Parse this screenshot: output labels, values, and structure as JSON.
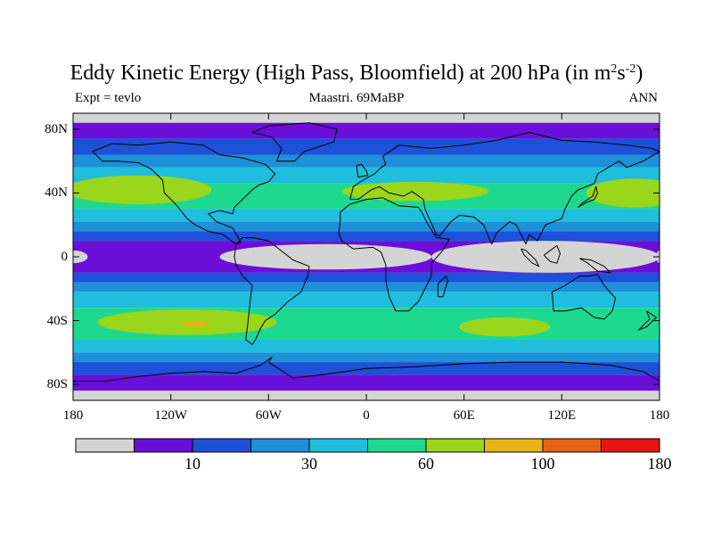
{
  "title": {
    "main": "Eddy Kinetic Energy (High Pass, Bloomfield) at 200 hPa (in m",
    "sup1": "2",
    "mid": "s",
    "sup2": "-2",
    "end": ")"
  },
  "subtitle": {
    "left": "Expt = tevlo",
    "center": "Maastri.  69MaBP",
    "right": "ANN"
  },
  "map": {
    "lat_range": [
      -90,
      90
    ],
    "lon_range": [
      -180,
      180
    ],
    "y_ticks": [
      {
        "label": "80N",
        "lat": 80
      },
      {
        "label": "40N",
        "lat": 40
      },
      {
        "label": "0",
        "lat": 0
      },
      {
        "label": "40S",
        "lat": -40
      },
      {
        "label": "80S",
        "lat": -80
      }
    ],
    "x_ticks": [
      {
        "label": "180",
        "lon": -180
      },
      {
        "label": "120W",
        "lon": -120
      },
      {
        "label": "60W",
        "lon": -60
      },
      {
        "label": "0",
        "lon": 0
      },
      {
        "label": "60E",
        "lon": 60
      },
      {
        "label": "120E",
        "lon": 120
      },
      {
        "label": "180",
        "lon": 180
      }
    ],
    "field_bands": [
      {
        "lat_from": 90,
        "lat_to": 84,
        "level": 0
      },
      {
        "lat_from": 84,
        "lat_to": 74,
        "level": 1
      },
      {
        "lat_from": 74,
        "lat_to": 64,
        "level": 2
      },
      {
        "lat_from": 64,
        "lat_to": 56,
        "level": 3
      },
      {
        "lat_from": 56,
        "lat_to": 46,
        "level": 4
      },
      {
        "lat_from": 46,
        "lat_to": 30,
        "level": 5
      },
      {
        "lat_from": 30,
        "lat_to": 22,
        "level": 4
      },
      {
        "lat_from": 22,
        "lat_to": 16,
        "level": 3
      },
      {
        "lat_from": 16,
        "lat_to": 10,
        "level": 2
      },
      {
        "lat_from": 10,
        "lat_to": -10,
        "level": 1
      },
      {
        "lat_from": -10,
        "lat_to": -16,
        "level": 2
      },
      {
        "lat_from": -16,
        "lat_to": -22,
        "level": 3
      },
      {
        "lat_from": -22,
        "lat_to": -32,
        "level": 4
      },
      {
        "lat_from": -32,
        "lat_to": -52,
        "level": 5
      },
      {
        "lat_from": -52,
        "lat_to": -60,
        "level": 4
      },
      {
        "lat_from": -60,
        "lat_to": -66,
        "level": 3
      },
      {
        "lat_from": -66,
        "lat_to": -74,
        "level": 2
      },
      {
        "lat_from": -74,
        "lat_to": -84,
        "level": 1
      },
      {
        "lat_from": -84,
        "lat_to": -90,
        "level": 0
      }
    ],
    "blobs": [
      {
        "name": "nh-jet-west",
        "lon": -140,
        "lat": 42,
        "rx": 45,
        "ry": 9,
        "level": 6
      },
      {
        "name": "nh-jet-east",
        "lon": 165,
        "lat": 40,
        "rx": 30,
        "ry": 9,
        "level": 6
      },
      {
        "name": "nh-jet-asia",
        "lon": 30,
        "lat": 41,
        "rx": 45,
        "ry": 6,
        "level": 6
      },
      {
        "name": "sh-jet-pacific",
        "lon": -110,
        "lat": -41,
        "rx": 55,
        "ry": 8,
        "level": 6
      },
      {
        "name": "sh-jet-indian",
        "lon": 85,
        "lat": -44,
        "rx": 28,
        "ry": 6,
        "level": 6
      },
      {
        "name": "sh-jet-max",
        "lon": -105,
        "lat": -42,
        "rx": 9,
        "ry": 1.7,
        "level": 7
      },
      {
        "name": "tropics-calm-east",
        "lon": 110,
        "lat": 0,
        "rx": 70,
        "ry": 10,
        "level": 0
      },
      {
        "name": "tropics-calm-center",
        "lon": -25,
        "lat": 0,
        "rx": 65,
        "ry": 8,
        "level": 0
      },
      {
        "name": "tropics-calm-west",
        "lon": -180,
        "lat": 0,
        "rx": 9,
        "ry": 4,
        "level": 0
      },
      {
        "name": "tropics-calm-dateline",
        "lon": 180,
        "lat": 0,
        "rx": 2,
        "ry": 4,
        "level": 0
      }
    ],
    "coastlines": [
      {
        "name": "north-america",
        "points": [
          [
            -168,
            66
          ],
          [
            -162,
            60
          ],
          [
            -152,
            60
          ],
          [
            -140,
            59
          ],
          [
            -132,
            55
          ],
          [
            -125,
            48
          ],
          [
            -124,
            40
          ],
          [
            -117,
            33
          ],
          [
            -110,
            24
          ],
          [
            -105,
            20
          ],
          [
            -97,
            16
          ],
          [
            -88,
            14
          ],
          [
            -83,
            10
          ],
          [
            -80,
            8
          ],
          [
            -77,
            9
          ],
          [
            -82,
            18
          ],
          [
            -92,
            22
          ],
          [
            -97,
            27
          ],
          [
            -90,
            29
          ],
          [
            -82,
            27
          ],
          [
            -81,
            31
          ],
          [
            -76,
            36
          ],
          [
            -70,
            42
          ],
          [
            -66,
            45
          ],
          [
            -60,
            47
          ],
          [
            -56,
            52
          ],
          [
            -62,
            58
          ],
          [
            -76,
            62
          ],
          [
            -90,
            64
          ],
          [
            -100,
            70
          ],
          [
            -120,
            72
          ],
          [
            -140,
            70
          ],
          [
            -156,
            71
          ],
          [
            -168,
            66
          ]
        ]
      },
      {
        "name": "greenland",
        "points": [
          [
            -55,
            60
          ],
          [
            -44,
            60
          ],
          [
            -38,
            66
          ],
          [
            -20,
            72
          ],
          [
            -18,
            80
          ],
          [
            -35,
            84
          ],
          [
            -60,
            82
          ],
          [
            -70,
            78
          ],
          [
            -58,
            75
          ],
          [
            -52,
            68
          ],
          [
            -55,
            60
          ]
        ]
      },
      {
        "name": "south-america",
        "points": [
          [
            -80,
            8
          ],
          [
            -76,
            12
          ],
          [
            -70,
            12
          ],
          [
            -60,
            10
          ],
          [
            -50,
            2
          ],
          [
            -45,
            -2
          ],
          [
            -35,
            -6
          ],
          [
            -36,
            -12
          ],
          [
            -40,
            -22
          ],
          [
            -48,
            -28
          ],
          [
            -56,
            -36
          ],
          [
            -62,
            -40
          ],
          [
            -65,
            -45
          ],
          [
            -68,
            -52
          ],
          [
            -70,
            -55
          ],
          [
            -74,
            -52
          ],
          [
            -73,
            -44
          ],
          [
            -72,
            -35
          ],
          [
            -71,
            -25
          ],
          [
            -70,
            -18
          ],
          [
            -76,
            -12
          ],
          [
            -80,
            -5
          ],
          [
            -81,
            0
          ],
          [
            -80,
            8
          ]
        ]
      },
      {
        "name": "africa",
        "points": [
          [
            -16,
            28
          ],
          [
            -10,
            33
          ],
          [
            0,
            36
          ],
          [
            10,
            37
          ],
          [
            20,
            32
          ],
          [
            32,
            31
          ],
          [
            34,
            28
          ],
          [
            38,
            20
          ],
          [
            43,
            12
          ],
          [
            51,
            11
          ],
          [
            47,
            4
          ],
          [
            40,
            -4
          ],
          [
            40,
            -12
          ],
          [
            35,
            -22
          ],
          [
            32,
            -28
          ],
          [
            26,
            -34
          ],
          [
            18,
            -34
          ],
          [
            14,
            -25
          ],
          [
            12,
            -15
          ],
          [
            12,
            -5
          ],
          [
            9,
            3
          ],
          [
            4,
            6
          ],
          [
            -8,
            5
          ],
          [
            -15,
            10
          ],
          [
            -17,
            15
          ],
          [
            -16,
            22
          ],
          [
            -16,
            28
          ]
        ]
      },
      {
        "name": "eurasia",
        "points": [
          [
            -10,
            36
          ],
          [
            -8,
            44
          ],
          [
            -2,
            48
          ],
          [
            5,
            52
          ],
          [
            8,
            55
          ],
          [
            12,
            58
          ],
          [
            10,
            63
          ],
          [
            20,
            70
          ],
          [
            40,
            68
          ],
          [
            60,
            70
          ],
          [
            80,
            73
          ],
          [
            100,
            78
          ],
          [
            120,
            73
          ],
          [
            140,
            72
          ],
          [
            160,
            70
          ],
          [
            175,
            68
          ],
          [
            180,
            66
          ],
          [
            170,
            60
          ],
          [
            160,
            56
          ],
          [
            155,
            60
          ],
          [
            142,
            52
          ],
          [
            140,
            46
          ],
          [
            130,
            42
          ],
          [
            126,
            38
          ],
          [
            122,
            30
          ],
          [
            120,
            24
          ],
          [
            110,
            20
          ],
          [
            105,
            10
          ],
          [
            100,
            14
          ],
          [
            98,
            8
          ],
          [
            92,
            20
          ],
          [
            88,
            22
          ],
          [
            80,
            15
          ],
          [
            77,
            8
          ],
          [
            72,
            20
          ],
          [
            66,
            25
          ],
          [
            57,
            26
          ],
          [
            52,
            22
          ],
          [
            45,
            13
          ],
          [
            43,
            14
          ],
          [
            36,
            30
          ],
          [
            35,
            36
          ],
          [
            28,
            41
          ],
          [
            23,
            38
          ],
          [
            14,
            40
          ],
          [
            8,
            44
          ],
          [
            3,
            42
          ],
          [
            -5,
            36
          ],
          [
            -10,
            36
          ]
        ]
      },
      {
        "name": "australia",
        "points": [
          [
            114,
            -22
          ],
          [
            122,
            -18
          ],
          [
            131,
            -12
          ],
          [
            137,
            -12
          ],
          [
            142,
            -11
          ],
          [
            146,
            -18
          ],
          [
            153,
            -26
          ],
          [
            151,
            -34
          ],
          [
            146,
            -39
          ],
          [
            140,
            -38
          ],
          [
            132,
            -32
          ],
          [
            122,
            -34
          ],
          [
            115,
            -34
          ],
          [
            114,
            -22
          ]
        ]
      },
      {
        "name": "antarctica",
        "points": [
          [
            -180,
            -78
          ],
          [
            -160,
            -78
          ],
          [
            -140,
            -75
          ],
          [
            -120,
            -73
          ],
          [
            -100,
            -72
          ],
          [
            -80,
            -73
          ],
          [
            -65,
            -68
          ],
          [
            -58,
            -63
          ],
          [
            -60,
            -66
          ],
          [
            -45,
            -76
          ],
          [
            -20,
            -73
          ],
          [
            0,
            -70
          ],
          [
            30,
            -69
          ],
          [
            60,
            -67
          ],
          [
            90,
            -66
          ],
          [
            120,
            -66
          ],
          [
            150,
            -68
          ],
          [
            170,
            -72
          ],
          [
            180,
            -78
          ]
        ]
      },
      {
        "name": "uk",
        "points": [
          [
            -5,
            50
          ],
          [
            1,
            51
          ],
          [
            0,
            54
          ],
          [
            -3,
            58
          ],
          [
            -6,
            57
          ],
          [
            -5,
            50
          ]
        ]
      },
      {
        "name": "madagascar",
        "points": [
          [
            44,
            -25
          ],
          [
            47,
            -25
          ],
          [
            50,
            -15
          ],
          [
            49,
            -12
          ],
          [
            44,
            -17
          ],
          [
            44,
            -25
          ]
        ]
      },
      {
        "name": "japan",
        "points": [
          [
            130,
            31
          ],
          [
            135,
            34
          ],
          [
            140,
            36
          ],
          [
            142,
            40
          ],
          [
            141,
            44
          ],
          [
            139,
            38
          ],
          [
            133,
            34
          ],
          [
            130,
            31
          ]
        ]
      },
      {
        "name": "borneo",
        "points": [
          [
            109,
            1
          ],
          [
            113,
            -3
          ],
          [
            117,
            -4
          ],
          [
            119,
            2
          ],
          [
            117,
            7
          ],
          [
            113,
            4
          ],
          [
            109,
            1
          ]
        ]
      },
      {
        "name": "sumatra",
        "points": [
          [
            95,
            5
          ],
          [
            98,
            4
          ],
          [
            104,
            -2
          ],
          [
            106,
            -6
          ],
          [
            102,
            -4
          ],
          [
            97,
            1
          ],
          [
            95,
            5
          ]
        ]
      },
      {
        "name": "new-guinea",
        "points": [
          [
            131,
            -1
          ],
          [
            138,
            -2
          ],
          [
            146,
            -6
          ],
          [
            150,
            -10
          ],
          [
            142,
            -9
          ],
          [
            136,
            -4
          ],
          [
            131,
            -1
          ]
        ]
      },
      {
        "name": "new-zealand",
        "points": [
          [
            172,
            -34
          ],
          [
            178,
            -38
          ],
          [
            175,
            -41
          ],
          [
            172,
            -44
          ],
          [
            167,
            -46
          ],
          [
            170,
            -43
          ],
          [
            174,
            -39
          ],
          [
            172,
            -34
          ]
        ]
      }
    ]
  },
  "colorbar": {
    "colors": [
      "#d4d4d4",
      "#6a0fd8",
      "#1e50d8",
      "#1e90d8",
      "#1ebedc",
      "#1ed890",
      "#9ad61c",
      "#e6b414",
      "#e66414",
      "#e61414"
    ],
    "labels": [
      {
        "text": "10",
        "index": 2
      },
      {
        "text": "30",
        "index": 4
      },
      {
        "text": "60",
        "index": 6
      },
      {
        "text": "100",
        "index": 8
      },
      {
        "text": "180",
        "index": 10
      }
    ]
  }
}
